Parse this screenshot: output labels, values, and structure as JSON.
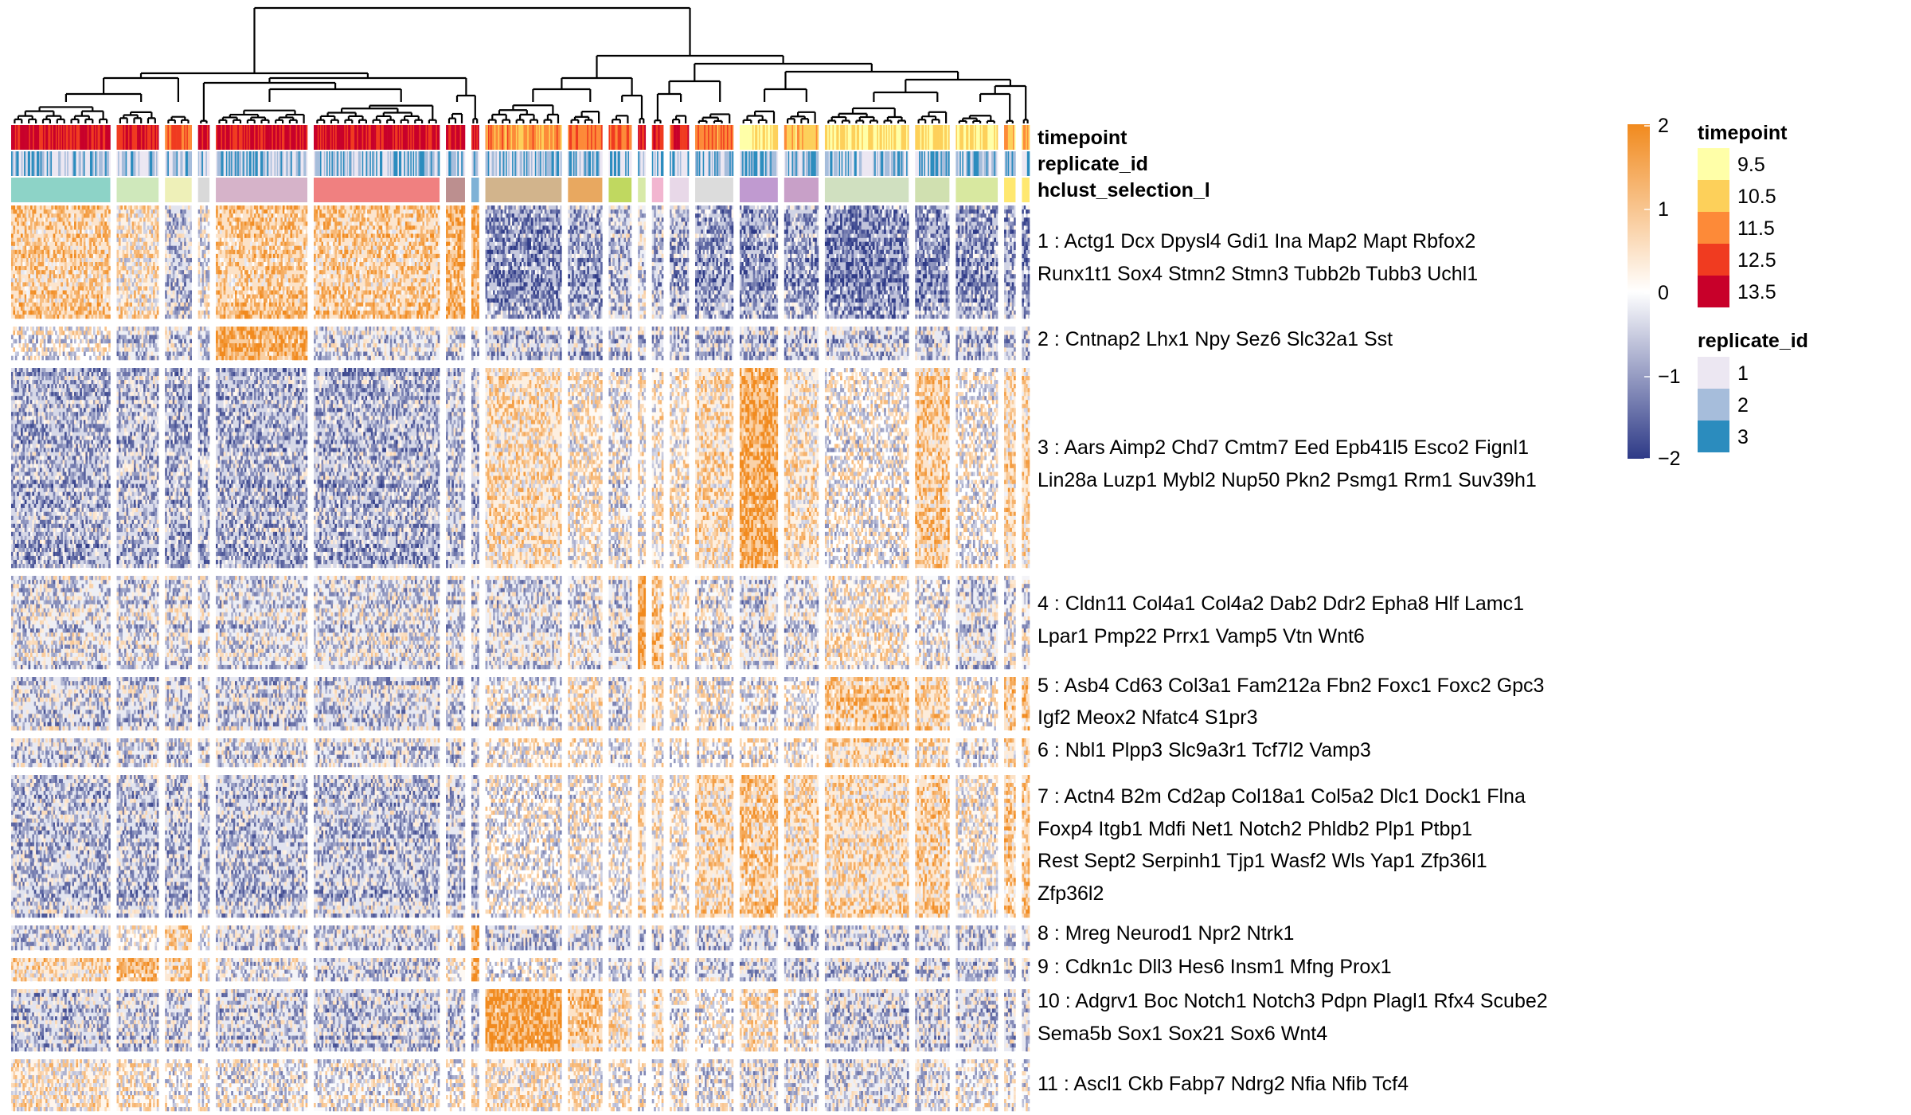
{
  "chart_data": {
    "type": "heatmap",
    "title": "",
    "annotation_tracks": [
      "timepoint",
      "replicate_id",
      "hclust_selection_l"
    ],
    "column_clusters": 22,
    "column_cluster_sizes": [
      26,
      11,
      7,
      3,
      24,
      33,
      5,
      2,
      20,
      9,
      6,
      2,
      3,
      5,
      10,
      10,
      9,
      22,
      9,
      11,
      3,
      2
    ],
    "row_clusters": [
      {
        "id": 1,
        "label_lines": [
          "1 : Actg1 Dcx Dpysl4 Gdi1 Ina Map2 Mapt Rbfox2",
          "Runx1t1 Sox4 Stmn2 Stmn3 Tubb2b Tubb3 Uchl1"
        ]
      },
      {
        "id": 2,
        "label_lines": [
          "2 : Cntnap2 Lhx1 Npy Sez6 Slc32a1 Sst"
        ]
      },
      {
        "id": 3,
        "label_lines": [
          "3 : Aars Aimp2 Chd7 Cmtm7 Eed Epb41l5 Esco2 Fignl1",
          "Lin28a Luzp1 Mybl2 Nup50 Pkn2 Psmg1 Rrm1 Suv39h1"
        ]
      },
      {
        "id": 4,
        "label_lines": [
          "4 : Cldn11 Col4a1 Col4a2 Dab2 Ddr2 Epha8 Hlf Lamc1",
          "Lpar1 Pmp22 Prrx1 Vamp5 Vtn Wnt6"
        ]
      },
      {
        "id": 5,
        "label_lines": [
          "5 : Asb4 Cd63 Col3a1 Fam212a Fbn2 Foxc1 Foxc2 Gpc3",
          "Igf2 Meox2 Nfatc4 S1pr3"
        ]
      },
      {
        "id": 6,
        "label_lines": [
          "6 : Nbl1 Plpp3 Slc9a3r1 Tcf7l2 Vamp3"
        ]
      },
      {
        "id": 7,
        "label_lines": [
          "7 : Actn4 B2m Cd2ap Col18a1 Col5a2 Dlc1 Dock1 Flna",
          "Foxp4 Itgb1 Mdfi Net1 Notch2 Phldb2 Plp1 Ptbp1",
          "Rest Sept2 Serpinh1 Tjp1 Wasf2 Wls Yap1 Zfp36l1",
          "Zfp36l2"
        ]
      },
      {
        "id": 8,
        "label_lines": [
          "8 : Mreg Neurod1 Npr2 Ntrk1"
        ]
      },
      {
        "id": 9,
        "label_lines": [
          "9 : Cdkn1c Dll3 Hes6 Insm1 Mfng Prox1"
        ]
      },
      {
        "id": 10,
        "label_lines": [
          "10 : Adgrv1 Boc Notch1 Notch3 Pdpn Plagl1 Rfx4 Scube2",
          "Sema5b Sox1 Sox21 Sox6 Wnt4"
        ]
      },
      {
        "id": 11,
        "label_lines": [
          "11 : Ascl1 Ckb Fabp7 Ndrg2 Nfia Nfib Tcf4"
        ]
      }
    ],
    "color_scale": {
      "min": -2,
      "max": 2,
      "ticks": [
        "2",
        "1",
        "0",
        "−1",
        "−2"
      ],
      "colors": {
        "low": "#2e3a87",
        "mid": "#ffffff",
        "high": "#f18a1e"
      }
    },
    "legends": [
      {
        "title": "timepoint",
        "items": [
          {
            "label": "9.5",
            "color": "#ffffa8"
          },
          {
            "label": "10.5",
            "color": "#fdd05a"
          },
          {
            "label": "11.5",
            "color": "#fd8a38"
          },
          {
            "label": "12.5",
            "color": "#f03b20"
          },
          {
            "label": "13.5",
            "color": "#c8002a"
          }
        ]
      },
      {
        "title": "replicate_id",
        "items": [
          {
            "label": "1",
            "color": "#ece7f2"
          },
          {
            "label": "2",
            "color": "#a6bddb"
          },
          {
            "label": "3",
            "color": "#2b8cbe"
          }
        ]
      }
    ],
    "hclust_colors": [
      "#8dd3c7",
      "#cfe8bb",
      "#eef0b8",
      "#d9d9d9",
      "#d6b3c9",
      "#f08080",
      "#bc8f8f",
      "#7fb2d6",
      "#d2b48c",
      "#e8a860",
      "#c0d860",
      "#d8eaa8",
      "#f2b6d0",
      "#e8d8e8",
      "#dcdcdc",
      "#c09ad0",
      "#c8a0c8",
      "#d0e0c0",
      "#d0e0b0",
      "#d8e8a0",
      "#ffe870",
      "#ffe870"
    ],
    "colormap_tendencies": [
      [
        0.8,
        0.4,
        -0.5,
        -0.1,
        0.9,
        0.8,
        1.3,
        1.3,
        -1.0,
        -0.8,
        -0.5,
        -0.3,
        -0.5,
        -0.7,
        -0.9,
        -0.9,
        -0.8,
        -1.1,
        -1.0,
        -0.9,
        -0.8,
        -1.0
      ],
      [
        0.0,
        -0.3,
        -0.3,
        -0.3,
        1.5,
        -0.3,
        -0.3,
        -0.3,
        -0.5,
        -0.5,
        -0.4,
        -0.4,
        -0.4,
        -0.4,
        -0.5,
        -0.5,
        -0.5,
        -0.4,
        -0.4,
        -0.5,
        -0.5,
        -0.5
      ],
      [
        -0.7,
        -0.6,
        -0.7,
        -0.7,
        -0.7,
        -0.7,
        -0.5,
        -0.6,
        0.5,
        0.2,
        -0.1,
        0.1,
        0.2,
        0.2,
        0.5,
        1.4,
        0.4,
        0.0,
        0.8,
        0.0,
        0.6,
        0.6
      ],
      [
        -0.3,
        -0.3,
        -0.3,
        -0.3,
        -0.3,
        -0.3,
        -0.3,
        -0.3,
        -0.3,
        -0.2,
        -0.3,
        1.8,
        0.9,
        0.3,
        -0.1,
        -0.3,
        -0.2,
        0.2,
        -0.1,
        -0.3,
        -0.2,
        -0.2
      ],
      [
        -0.4,
        -0.4,
        -0.4,
        -0.4,
        -0.4,
        -0.4,
        -0.3,
        -0.4,
        -0.1,
        0.3,
        -0.2,
        0.5,
        0.3,
        0.1,
        0.1,
        -0.1,
        0.1,
        0.9,
        0.6,
        0.0,
        0.9,
        0.9
      ],
      [
        -0.4,
        -0.3,
        -0.3,
        -0.3,
        -0.3,
        -0.3,
        -0.3,
        -0.3,
        0.1,
        0.1,
        -0.1,
        0.3,
        0.2,
        0.0,
        0.1,
        0.1,
        0.1,
        0.6,
        0.4,
        -0.1,
        0.6,
        0.6
      ],
      [
        -0.5,
        -0.5,
        -0.5,
        -0.5,
        -0.5,
        -0.5,
        -0.4,
        -0.5,
        0.0,
        0.1,
        0.1,
        0.5,
        0.4,
        0.2,
        0.6,
        0.9,
        0.6,
        0.6,
        0.8,
        0.2,
        0.9,
        0.9
      ],
      [
        -0.4,
        0.1,
        0.6,
        0.0,
        -0.4,
        -0.4,
        -0.1,
        1.8,
        -0.4,
        -0.4,
        -0.4,
        -0.4,
        -0.4,
        -0.4,
        -0.4,
        -0.4,
        -0.4,
        -0.4,
        -0.4,
        -0.4,
        -0.4,
        -0.4
      ],
      [
        0.6,
        1.2,
        0.7,
        0.4,
        -0.2,
        -0.4,
        0.2,
        1.5,
        0.0,
        -0.2,
        -0.2,
        -0.2,
        -0.3,
        -0.3,
        -0.3,
        -0.4,
        -0.4,
        -0.4,
        -0.4,
        -0.4,
        -0.4,
        -0.4
      ],
      [
        -0.5,
        -0.4,
        -0.4,
        -0.4,
        -0.4,
        -0.5,
        -0.4,
        -0.4,
        1.6,
        0.9,
        0.4,
        0.2,
        0.5,
        -0.1,
        0.0,
        0.3,
        -0.1,
        -0.4,
        -0.4,
        -0.4,
        -0.4,
        -0.4
      ],
      [
        0.3,
        0.2,
        0.0,
        0.0,
        -0.1,
        -0.1,
        0.0,
        0.2,
        0.3,
        0.2,
        0.1,
        0.0,
        0.0,
        -0.1,
        -0.1,
        -0.2,
        -0.2,
        -0.3,
        -0.2,
        -0.1,
        -0.1,
        -0.1
      ]
    ]
  }
}
